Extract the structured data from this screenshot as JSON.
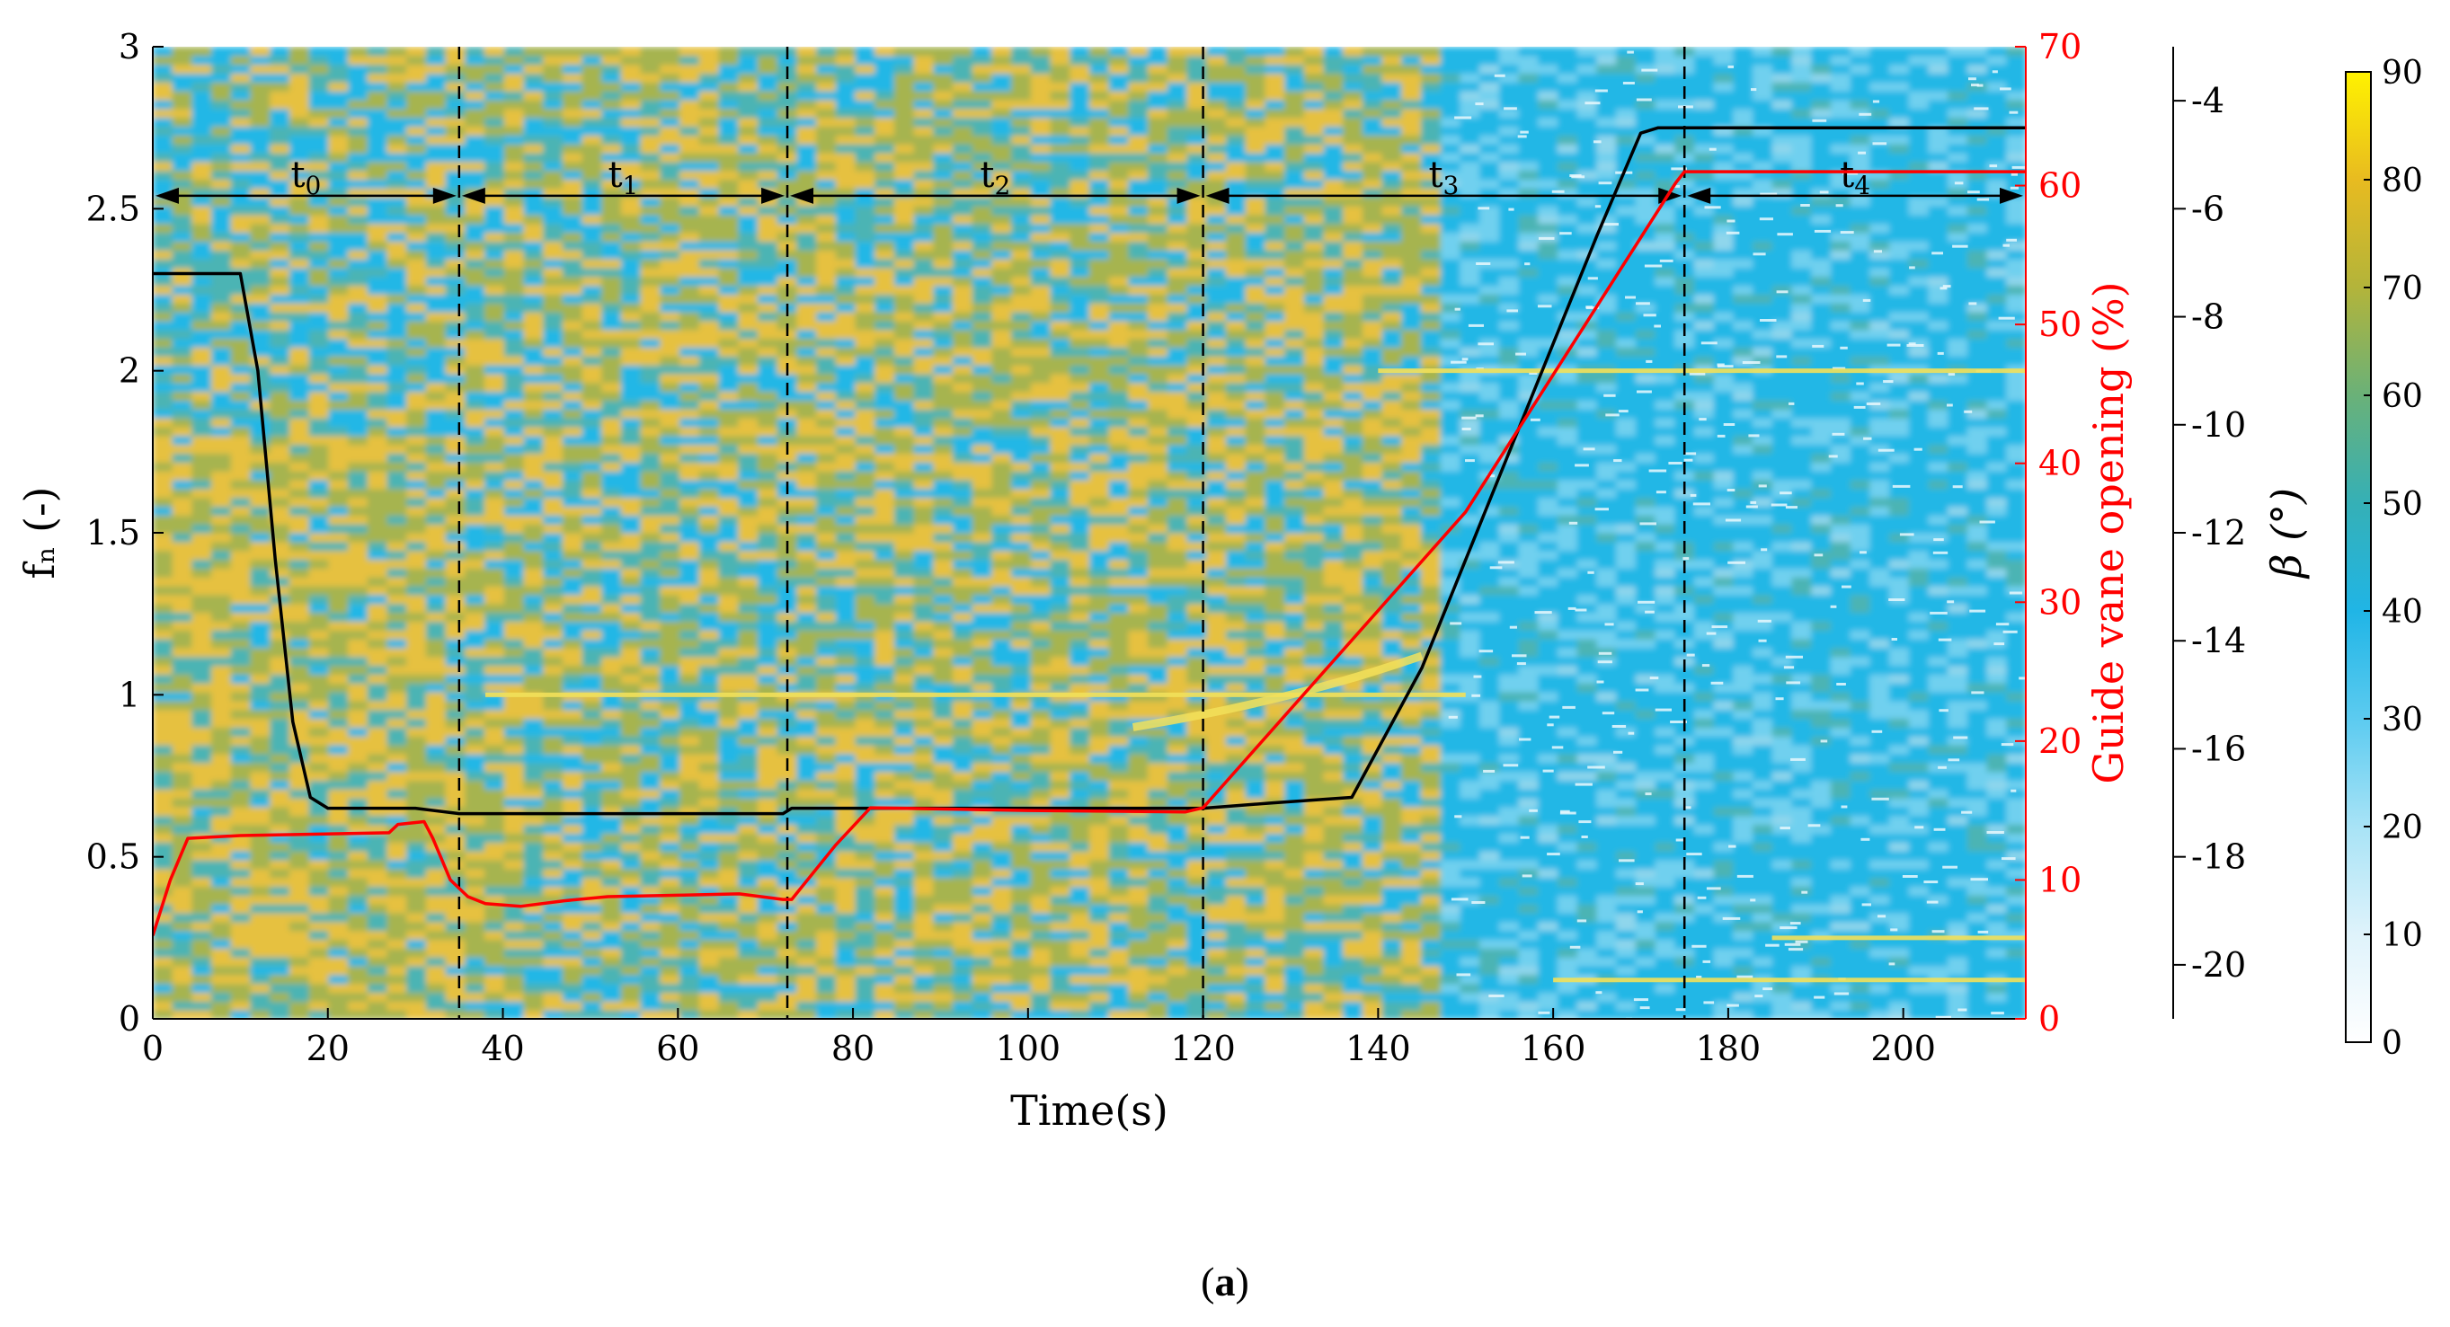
{
  "panel_label": {
    "open": "(",
    "letter": "a",
    "close": ")"
  },
  "chart_data": {
    "type": "heatmap",
    "title": "",
    "xlabel": "Time(s)",
    "ylabel_left": "fₙ (-)",
    "ylabel_right": "Guide vane opening (%)",
    "ylabel_beta": "β (°)",
    "xlim": [
      0,
      214
    ],
    "ylim_left": [
      0,
      3
    ],
    "ylim_right": [
      0,
      70
    ],
    "ylim_beta": [
      -21,
      -3
    ],
    "xticks": [
      0,
      20,
      40,
      60,
      80,
      100,
      120,
      140,
      160,
      180,
      200
    ],
    "yticks_left": [
      "0",
      "0.5",
      "1",
      "1.5",
      "2",
      "2.5",
      "3"
    ],
    "yticks_right": [
      "0",
      "10",
      "20",
      "30",
      "40",
      "50",
      "60",
      "70"
    ],
    "yticks_beta": [
      "-20",
      "-18",
      "-16",
      "-14",
      "-12",
      "-10",
      "-8",
      "-6",
      "-4"
    ],
    "colorbar": {
      "range": [
        0,
        90
      ],
      "ticks": [
        "0",
        "10",
        "20",
        "30",
        "40",
        "50",
        "60",
        "70",
        "80",
        "90"
      ],
      "colors": [
        "#ffffff",
        "#dff3fb",
        "#a8e3f6",
        "#5ccbf0",
        "#20b5e6",
        "#35b0b6",
        "#6ab178",
        "#b3b43a",
        "#e8bb20",
        "#fff200"
      ]
    },
    "heatmap_colors": {
      "yellow_warm": "#e6c140",
      "olive_green": "#a6b44f",
      "teal": "#4cb4b4",
      "cyan": "#22b7e6",
      "pale_cyan": "#6fd0ef",
      "ridge": "#f2e15a"
    },
    "periods": [
      {
        "label": "t",
        "sub": "0",
        "start": 0,
        "end": 35
      },
      {
        "label": "t",
        "sub": "1",
        "start": 35,
        "end": 72.5
      },
      {
        "label": "t",
        "sub": "2",
        "start": 72.5,
        "end": 120
      },
      {
        "label": "t",
        "sub": "3",
        "start": 120,
        "end": 175
      },
      {
        "label": "t",
        "sub": "4",
        "start": 175,
        "end": 214
      }
    ],
    "period_arrow_fn": 2.54,
    "series": [
      {
        "name": "β",
        "axis": "beta",
        "color": "#000000",
        "points": [
          [
            0,
            -7.2
          ],
          [
            10,
            -7.2
          ],
          [
            12,
            -9.0
          ],
          [
            14,
            -12.5
          ],
          [
            16,
            -15.5
          ],
          [
            18,
            -16.9
          ],
          [
            20,
            -17.1
          ],
          [
            30,
            -17.1
          ],
          [
            35,
            -17.2
          ],
          [
            50,
            -17.2
          ],
          [
            72,
            -17.2
          ],
          [
            73,
            -17.1
          ],
          [
            100,
            -17.1
          ],
          [
            120,
            -17.1
          ],
          [
            128,
            -17.0
          ],
          [
            137,
            -16.9
          ],
          [
            145,
            -14.5
          ],
          [
            155,
            -10.5
          ],
          [
            165,
            -6.5
          ],
          [
            170,
            -4.6
          ],
          [
            172,
            -4.5
          ],
          [
            214,
            -4.5
          ]
        ]
      },
      {
        "name": "Guide vane opening",
        "axis": "right",
        "color": "#ff0000",
        "points": [
          [
            0,
            6
          ],
          [
            2,
            10
          ],
          [
            4,
            13
          ],
          [
            10,
            13.2
          ],
          [
            27,
            13.4
          ],
          [
            28,
            14.0
          ],
          [
            31,
            14.2
          ],
          [
            32,
            13.0
          ],
          [
            34,
            10.0
          ],
          [
            36,
            8.8
          ],
          [
            38,
            8.3
          ],
          [
            42,
            8.1
          ],
          [
            47,
            8.5
          ],
          [
            52,
            8.8
          ],
          [
            60,
            8.9
          ],
          [
            67,
            9.0
          ],
          [
            72,
            8.6
          ],
          [
            73,
            8.6
          ],
          [
            78,
            12.5
          ],
          [
            82,
            15.2
          ],
          [
            100,
            15.0
          ],
          [
            118,
            14.9
          ],
          [
            120,
            15.2
          ],
          [
            150,
            36.5
          ],
          [
            174,
            60.2
          ],
          [
            175,
            61.0
          ],
          [
            214,
            61.0
          ]
        ]
      }
    ],
    "horizontal_bands": [
      {
        "fn": 1.0,
        "x_start": 38,
        "x_end": 150
      },
      {
        "fn": 2.0,
        "x_start": 140,
        "x_end": 214
      },
      {
        "fn": 0.25,
        "x_start": 185,
        "x_end": 214
      },
      {
        "fn": 0.12,
        "x_start": 160,
        "x_end": 214
      }
    ]
  }
}
